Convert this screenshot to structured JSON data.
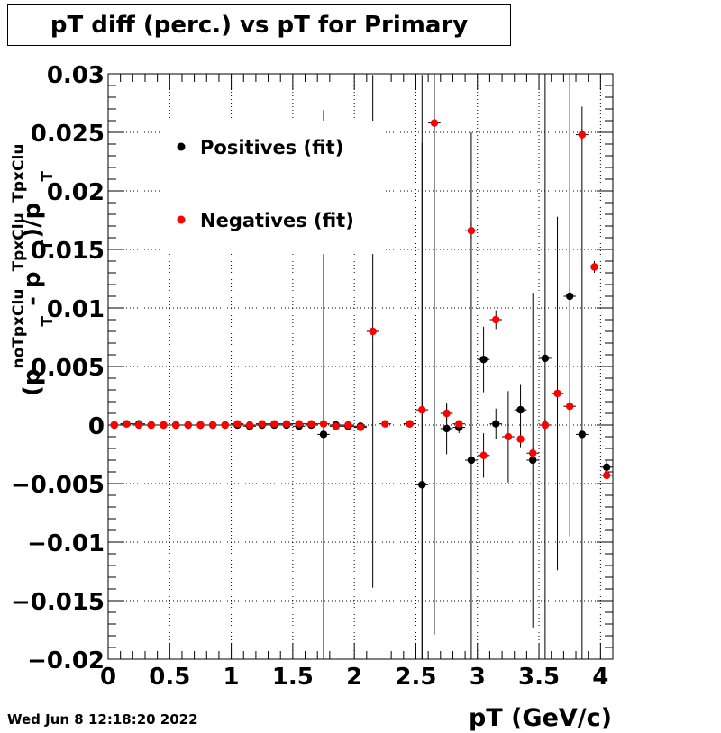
{
  "title": "pT diff (perc.) vs pT for Primary",
  "timestamp": "Wed Jun  8 12:18:20 2022",
  "chart_data": {
    "type": "scatter",
    "title": "pT diff (perc.) vs pT for Primary",
    "xlabel": "pT (GeV/c)",
    "ylabel": {
      "base": "(p",
      "base_sup": "noTpxClu",
      "sub1": "T",
      "mid": " - p",
      "mid_sup": "TpxClu",
      "sub2": "T",
      "end": ")/p",
      "end_sup": "TpxClu",
      "sub3": "T"
    },
    "xlim": [
      0,
      4.1
    ],
    "ylim": [
      -0.02,
      0.03
    ],
    "xticks": [
      0,
      0.5,
      1,
      1.5,
      2,
      2.5,
      3,
      3.5,
      4
    ],
    "xtick_labels": [
      "0",
      "0.5",
      "1",
      "1.5",
      "2",
      "2.5",
      "3",
      "3.5",
      "4"
    ],
    "yticks": [
      -0.02,
      -0.015,
      -0.01,
      -0.005,
      0,
      0.005,
      0.01,
      0.015,
      0.02,
      0.025,
      0.03
    ],
    "ytick_labels": [
      "−0.02",
      "−0.015",
      "−0.01",
      "−0.005",
      "0",
      "0.005",
      "0.01",
      "0.015",
      "0.02",
      "0.025",
      "0.03"
    ],
    "grid": true,
    "legend_position": "top-left",
    "series": [
      {
        "name": "Positives (fit)",
        "color": "#000000",
        "points": [
          {
            "x": 0.05,
            "y": 0.0,
            "err": 4e-05
          },
          {
            "x": 0.15,
            "y": 0.0001,
            "err": 4e-05
          },
          {
            "x": 0.25,
            "y": 0.0001,
            "err": 4e-05
          },
          {
            "x": 0.35,
            "y": 0.0,
            "err": 4e-05
          },
          {
            "x": 0.45,
            "y": 0.0,
            "err": 4e-05
          },
          {
            "x": 0.55,
            "y": 0.0,
            "err": 4e-05
          },
          {
            "x": 0.65,
            "y": 0.0,
            "err": 4e-05
          },
          {
            "x": 0.75,
            "y": 0.0,
            "err": 4e-05
          },
          {
            "x": 0.85,
            "y": 0.0,
            "err": 4e-05
          },
          {
            "x": 0.95,
            "y": 0.0,
            "err": 4e-05
          },
          {
            "x": 1.05,
            "y": 0.0,
            "err": 4e-05
          },
          {
            "x": 1.15,
            "y": -0.0001,
            "err": 4e-05
          },
          {
            "x": 1.25,
            "y": 0.0,
            "err": 4e-05
          },
          {
            "x": 1.35,
            "y": 0.0,
            "err": 4e-05
          },
          {
            "x": 1.45,
            "y": 0.0,
            "err": 4e-05
          },
          {
            "x": 1.55,
            "y": -0.0001,
            "err": 4e-05
          },
          {
            "x": 1.65,
            "y": 0.0,
            "err": 4e-05
          },
          {
            "x": 1.75,
            "y": -0.0008,
            "err": 0.0277
          },
          {
            "x": 1.85,
            "y": 0.0,
            "err": 4e-05
          },
          {
            "x": 1.95,
            "y": -0.0001,
            "err": 4e-05
          },
          {
            "x": 2.05,
            "y": -0.0001,
            "err": 4e-05
          },
          {
            "x": 2.45,
            "y": 0.0001,
            "err": 4e-05
          },
          {
            "x": 2.55,
            "y": -0.0051,
            "err": 0.035
          },
          {
            "x": 2.75,
            "y": -0.0003,
            "err": 0.0022
          },
          {
            "x": 2.85,
            "y": -0.0002,
            "err": 0.0005
          },
          {
            "x": 2.95,
            "y": -0.003,
            "err": 0.028
          },
          {
            "x": 3.05,
            "y": 0.0056,
            "err": 0.0028
          },
          {
            "x": 3.15,
            "y": 0.0001,
            "err": 0.0013
          },
          {
            "x": 3.35,
            "y": 0.0013,
            "err": 0.0022
          },
          {
            "x": 3.45,
            "y": -0.003,
            "err": 0.0143
          },
          {
            "x": 3.55,
            "y": 0.0057,
            "err": 0.029
          },
          {
            "x": 3.75,
            "y": 0.011,
            "err": 0.0205
          },
          {
            "x": 3.85,
            "y": -0.0008,
            "err": 0.028
          },
          {
            "x": 4.05,
            "y": -0.0036,
            "err": 0.0006
          }
        ]
      },
      {
        "name": "Negatives (fit)",
        "color": "#ff0000",
        "points": [
          {
            "x": 0.05,
            "y": 0.0,
            "err": 4e-05
          },
          {
            "x": 0.15,
            "y": 0.0001,
            "err": 4e-05
          },
          {
            "x": 0.25,
            "y": 0.0,
            "err": 4e-05
          },
          {
            "x": 0.35,
            "y": 0.0,
            "err": 4e-05
          },
          {
            "x": 0.45,
            "y": 0.0,
            "err": 4e-05
          },
          {
            "x": 0.55,
            "y": 0.0,
            "err": 4e-05
          },
          {
            "x": 0.65,
            "y": 0.0,
            "err": 4e-05
          },
          {
            "x": 0.75,
            "y": 0.0,
            "err": 4e-05
          },
          {
            "x": 0.85,
            "y": 0.0,
            "err": 4e-05
          },
          {
            "x": 0.95,
            "y": 0.0,
            "err": 4e-05
          },
          {
            "x": 1.05,
            "y": 0.0001,
            "err": 4e-05
          },
          {
            "x": 1.15,
            "y": 0.0,
            "err": 4e-05
          },
          {
            "x": 1.25,
            "y": 0.0001,
            "err": 4e-05
          },
          {
            "x": 1.35,
            "y": 0.0001,
            "err": 4e-05
          },
          {
            "x": 1.45,
            "y": 0.0001,
            "err": 4e-05
          },
          {
            "x": 1.55,
            "y": 0.0001,
            "err": 4e-05
          },
          {
            "x": 1.65,
            "y": 0.0001,
            "err": 4e-05
          },
          {
            "x": 1.75,
            "y": 0.0001,
            "err": 4e-05
          },
          {
            "x": 1.85,
            "y": -0.0001,
            "err": 4e-05
          },
          {
            "x": 1.95,
            "y": 0.0,
            "err": 4e-05
          },
          {
            "x": 2.05,
            "y": -0.0002,
            "err": 4e-05
          },
          {
            "x": 2.15,
            "y": 0.008,
            "err": 0.0219
          },
          {
            "x": 2.25,
            "y": 0.0001,
            "err": 4e-05
          },
          {
            "x": 2.45,
            "y": 0.0001,
            "err": 4e-05
          },
          {
            "x": 2.55,
            "y": 0.0013,
            "err": 0.0228
          },
          {
            "x": 2.65,
            "y": 0.0258,
            "err": 0.0437
          },
          {
            "x": 2.75,
            "y": 0.001,
            "err": 0.0007
          },
          {
            "x": 2.85,
            "y": 0.0001,
            "err": 0.0002
          },
          {
            "x": 2.95,
            "y": 0.0166,
            "err": 0.0007
          },
          {
            "x": 3.05,
            "y": -0.0026,
            "err": 0.0019
          },
          {
            "x": 3.15,
            "y": 0.009,
            "err": 0.0008
          },
          {
            "x": 3.25,
            "y": -0.001,
            "err": 0.0039
          },
          {
            "x": 3.35,
            "y": -0.0012,
            "err": 0.0007
          },
          {
            "x": 3.45,
            "y": -0.0024,
            "err": 0.0005
          },
          {
            "x": 3.55,
            "y": 0.0,
            "err": 0.0005
          },
          {
            "x": 3.65,
            "y": 0.0027,
            "err": 0.0151
          },
          {
            "x": 3.75,
            "y": 0.0016,
            "err": 0.0005
          },
          {
            "x": 3.85,
            "y": 0.0248,
            "err": 0.0005
          },
          {
            "x": 3.95,
            "y": 0.0135,
            "err": 0.0005
          },
          {
            "x": 4.05,
            "y": -0.0043,
            "err": 0.0003
          }
        ]
      }
    ]
  }
}
